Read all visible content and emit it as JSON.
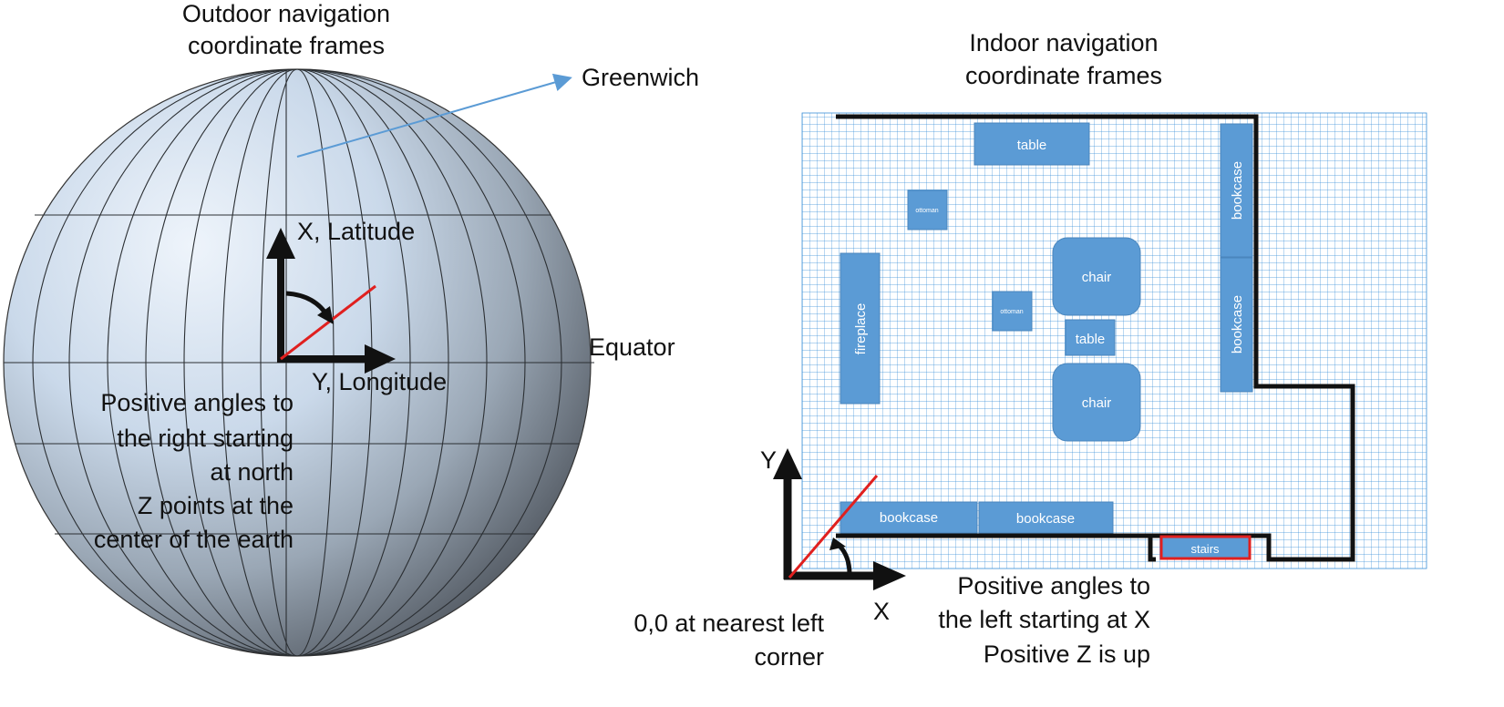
{
  "outdoor": {
    "title_line1": "Outdoor navigation",
    "title_line2": "coordinate frames",
    "greenwich_label": "Greenwich",
    "equator_label": "Equator",
    "x_axis_label": "X, Latitude",
    "y_axis_label": "Y, Longitude",
    "note_lines": [
      "Positive angles to",
      "the right starting",
      "at north",
      "Z points at the",
      "center of the earth"
    ]
  },
  "indoor": {
    "title_line1": "Indoor navigation",
    "title_line2": "coordinate frames",
    "x_axis_label": "X",
    "y_axis_label": "Y",
    "origin_note_line1": "0,0 at nearest left",
    "origin_note_line2": "corner",
    "angle_note_lines": [
      "Positive angles to",
      "the left starting at X",
      "Positive Z is up"
    ],
    "furniture": {
      "table_top": "table",
      "ottoman_1": "ottoman",
      "ottoman_2": "ottoman",
      "chair_1": "chair",
      "chair_2": "chair",
      "table_middle": "table",
      "fireplace": "fireplace",
      "bookcase_right_1": "bookcase",
      "bookcase_right_2": "bookcase",
      "bookcase_bottom_1": "bookcase",
      "bookcase_bottom_2": "bookcase",
      "stairs": "stairs"
    }
  },
  "colors": {
    "globe_light": "#dbe7f5",
    "globe_dark": "#5f6770",
    "grid_line": "#3a8fd8",
    "furniture_fill": "#5b9bd5",
    "angle_ray": "#e0201f",
    "stairs_border": "#e0201f",
    "arrow": "#111111"
  }
}
